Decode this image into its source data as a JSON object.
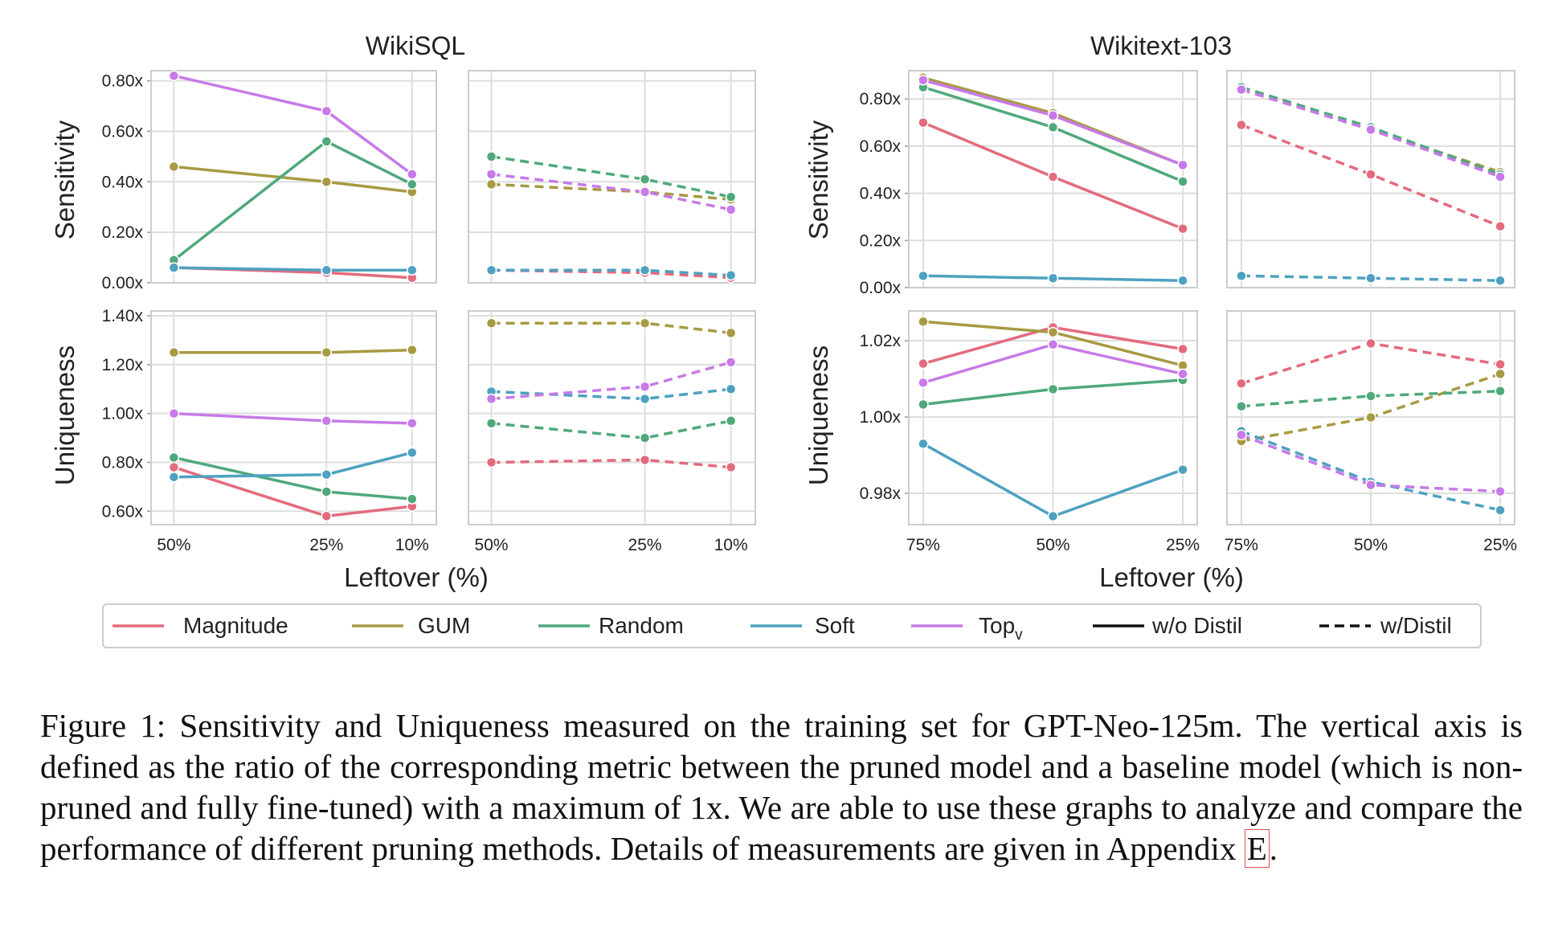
{
  "figure": {
    "group_titles": [
      "WikiSQL",
      "Wikitext-103"
    ],
    "row_labels": [
      "Sensitivity",
      "Uniqueness"
    ],
    "xlabel": "Leftover (%)"
  },
  "legend": [
    {
      "label": "Magnitude",
      "color": "#e36b7e",
      "style": "solid"
    },
    {
      "label": "GUM",
      "color": "#a89a43",
      "style": "solid"
    },
    {
      "label": "Random",
      "color": "#4fa97b",
      "style": "solid"
    },
    {
      "label": "Soft",
      "color": "#4ea1c0",
      "style": "solid"
    },
    {
      "label": "Top",
      "sub": "v",
      "color": "#c77ae8",
      "style": "solid"
    },
    {
      "label": "w/o Distil",
      "color": "#111111",
      "style": "solid"
    },
    {
      "label": "w/Distil",
      "color": "#111111",
      "style": "dashed"
    }
  ],
  "caption": {
    "text": "Figure 1: Sensitivity and Uniqueness measured on the training set for GPT-Neo-125m. The vertical axis is defined as the ratio of the corresponding metric between the pruned model and a baseline model (which is non-pruned and fully fine-tuned) with a maximum of 1x. We are able to use these graphs to analyze and compare the performance of different pruning methods. Details of measurements are given in Appendix ",
    "ref": "E",
    "end": "."
  },
  "chart_data": [
    {
      "type": "line",
      "group": "WikiSQL",
      "row": "Sensitivity",
      "distil": "w/o Distil",
      "x": [
        "50%",
        "25%",
        "10%"
      ],
      "ylim": [
        0.0,
        0.84
      ],
      "yticks": [
        "0.00x",
        "0.20x",
        "0.40x",
        "0.60x",
        "0.80x"
      ],
      "ytick_values": [
        0,
        0.2,
        0.4,
        0.6,
        0.8
      ],
      "series": [
        {
          "name": "Magnitude",
          "values": [
            0.06,
            0.04,
            0.02
          ]
        },
        {
          "name": "GUM",
          "values": [
            0.46,
            0.4,
            0.36
          ]
        },
        {
          "name": "Random",
          "values": [
            0.09,
            0.56,
            0.39
          ]
        },
        {
          "name": "Soft",
          "values": [
            0.06,
            0.05,
            0.05
          ]
        },
        {
          "name": "Top",
          "values": [
            0.82,
            0.68,
            0.43
          ]
        }
      ]
    },
    {
      "type": "line",
      "group": "WikiSQL",
      "row": "Sensitivity",
      "distil": "w/Distil",
      "x": [
        "50%",
        "25%",
        "10%"
      ],
      "ylim": [
        0.0,
        0.84
      ],
      "yticks": [],
      "ytick_values": [
        0,
        0.2,
        0.4,
        0.6,
        0.8
      ],
      "series": [
        {
          "name": "Magnitude",
          "values": [
            0.05,
            0.04,
            0.02
          ]
        },
        {
          "name": "GUM",
          "values": [
            0.39,
            0.36,
            0.33
          ]
        },
        {
          "name": "Random",
          "values": [
            0.5,
            0.41,
            0.34
          ]
        },
        {
          "name": "Soft",
          "values": [
            0.05,
            0.05,
            0.03
          ]
        },
        {
          "name": "Top",
          "values": [
            0.43,
            0.36,
            0.29
          ]
        }
      ]
    },
    {
      "type": "line",
      "group": "WikiSQL",
      "row": "Uniqueness",
      "distil": "w/o Distil",
      "x": [
        "50%",
        "25%",
        "10%"
      ],
      "ylim": [
        0.545,
        1.42
      ],
      "yticks": [
        "0.60x",
        "0.80x",
        "1.00x",
        "1.20x",
        "1.40x"
      ],
      "ytick_values": [
        0.6,
        0.8,
        1.0,
        1.2,
        1.4
      ],
      "series": [
        {
          "name": "Magnitude",
          "values": [
            0.78,
            0.58,
            0.62
          ]
        },
        {
          "name": "GUM",
          "values": [
            1.25,
            1.25,
            1.26
          ]
        },
        {
          "name": "Random",
          "values": [
            0.82,
            0.68,
            0.65
          ]
        },
        {
          "name": "Soft",
          "values": [
            0.74,
            0.75,
            0.84
          ]
        },
        {
          "name": "Top",
          "values": [
            1.0,
            0.97,
            0.96
          ]
        }
      ]
    },
    {
      "type": "line",
      "group": "WikiSQL",
      "row": "Uniqueness",
      "distil": "w/Distil",
      "x": [
        "50%",
        "25%",
        "10%"
      ],
      "ylim": [
        0.545,
        1.42
      ],
      "yticks": [],
      "ytick_values": [
        0.6,
        0.8,
        1.0,
        1.2,
        1.4
      ],
      "series": [
        {
          "name": "Magnitude",
          "values": [
            0.8,
            0.81,
            0.78
          ]
        },
        {
          "name": "GUM",
          "values": [
            1.37,
            1.37,
            1.33
          ]
        },
        {
          "name": "Random",
          "values": [
            0.96,
            0.9,
            0.97
          ]
        },
        {
          "name": "Soft",
          "values": [
            1.09,
            1.06,
            1.1
          ]
        },
        {
          "name": "Top",
          "values": [
            1.06,
            1.11,
            1.21
          ]
        }
      ]
    },
    {
      "type": "line",
      "group": "Wikitext-103",
      "row": "Sensitivity",
      "distil": "w/o Distil",
      "x": [
        "75%",
        "50%",
        "25%"
      ],
      "ylim": [
        0.0,
        0.92
      ],
      "yticks": [
        "0.00x",
        "0.20x",
        "0.40x",
        "0.60x",
        "0.80x"
      ],
      "ytick_values": [
        0,
        0.2,
        0.4,
        0.6,
        0.8
      ],
      "series": [
        {
          "name": "Magnitude",
          "values": [
            0.7,
            0.47,
            0.25
          ]
        },
        {
          "name": "GUM",
          "values": [
            0.89,
            0.74,
            0.52
          ]
        },
        {
          "name": "Random",
          "values": [
            0.85,
            0.68,
            0.45
          ]
        },
        {
          "name": "Soft",
          "values": [
            0.05,
            0.04,
            0.03
          ]
        },
        {
          "name": "Top",
          "values": [
            0.88,
            0.73,
            0.52
          ]
        }
      ]
    },
    {
      "type": "line",
      "group": "Wikitext-103",
      "row": "Sensitivity",
      "distil": "w/Distil",
      "x": [
        "75%",
        "50%",
        "25%"
      ],
      "ylim": [
        0.0,
        0.92
      ],
      "yticks": [],
      "ytick_values": [
        0,
        0.2,
        0.4,
        0.6,
        0.8
      ],
      "series": [
        {
          "name": "Magnitude",
          "values": [
            0.69,
            0.48,
            0.26
          ]
        },
        {
          "name": "GUM",
          "values": [
            0.84,
            0.67,
            0.49
          ]
        },
        {
          "name": "Random",
          "values": [
            0.85,
            0.68,
            0.48
          ]
        },
        {
          "name": "Soft",
          "values": [
            0.05,
            0.04,
            0.03
          ]
        },
        {
          "name": "Top",
          "values": [
            0.84,
            0.67,
            0.47
          ]
        }
      ]
    },
    {
      "type": "line",
      "group": "Wikitext-103",
      "row": "Uniqueness",
      "distil": "w/o Distil",
      "x": [
        "75%",
        "50%",
        "25%"
      ],
      "ylim": [
        0.9718,
        1.0278
      ],
      "yticks": [
        "0.98x",
        "1.00x",
        "1.02x"
      ],
      "ytick_values": [
        0.98,
        1.0,
        1.02
      ],
      "series": [
        {
          "name": "Magnitude",
          "values": [
            1.014,
            1.0235,
            1.0178
          ]
        },
        {
          "name": "GUM",
          "values": [
            1.025,
            1.0222,
            1.0135
          ]
        },
        {
          "name": "Random",
          "values": [
            1.0033,
            1.0073,
            1.0097
          ]
        },
        {
          "name": "Soft",
          "values": [
            0.993,
            0.974,
            0.9862
          ]
        },
        {
          "name": "Top",
          "values": [
            1.009,
            1.019,
            1.0113
          ]
        }
      ]
    },
    {
      "type": "line",
      "group": "Wikitext-103",
      "row": "Uniqueness",
      "distil": "w/Distil",
      "x": [
        "75%",
        "50%",
        "25%"
      ],
      "ylim": [
        0.9718,
        1.0278
      ],
      "yticks": [],
      "ytick_values": [
        0.98,
        1.0,
        1.02
      ],
      "series": [
        {
          "name": "Magnitude",
          "values": [
            1.0088,
            1.0193,
            1.0138
          ]
        },
        {
          "name": "GUM",
          "values": [
            0.9937,
            0.9999,
            1.0113
          ]
        },
        {
          "name": "Random",
          "values": [
            1.0028,
            1.0055,
            1.0068
          ]
        },
        {
          "name": "Soft",
          "values": [
            0.9963,
            0.983,
            0.9756
          ]
        },
        {
          "name": "Top",
          "values": [
            0.9953,
            0.9822,
            0.9805
          ]
        }
      ]
    }
  ]
}
